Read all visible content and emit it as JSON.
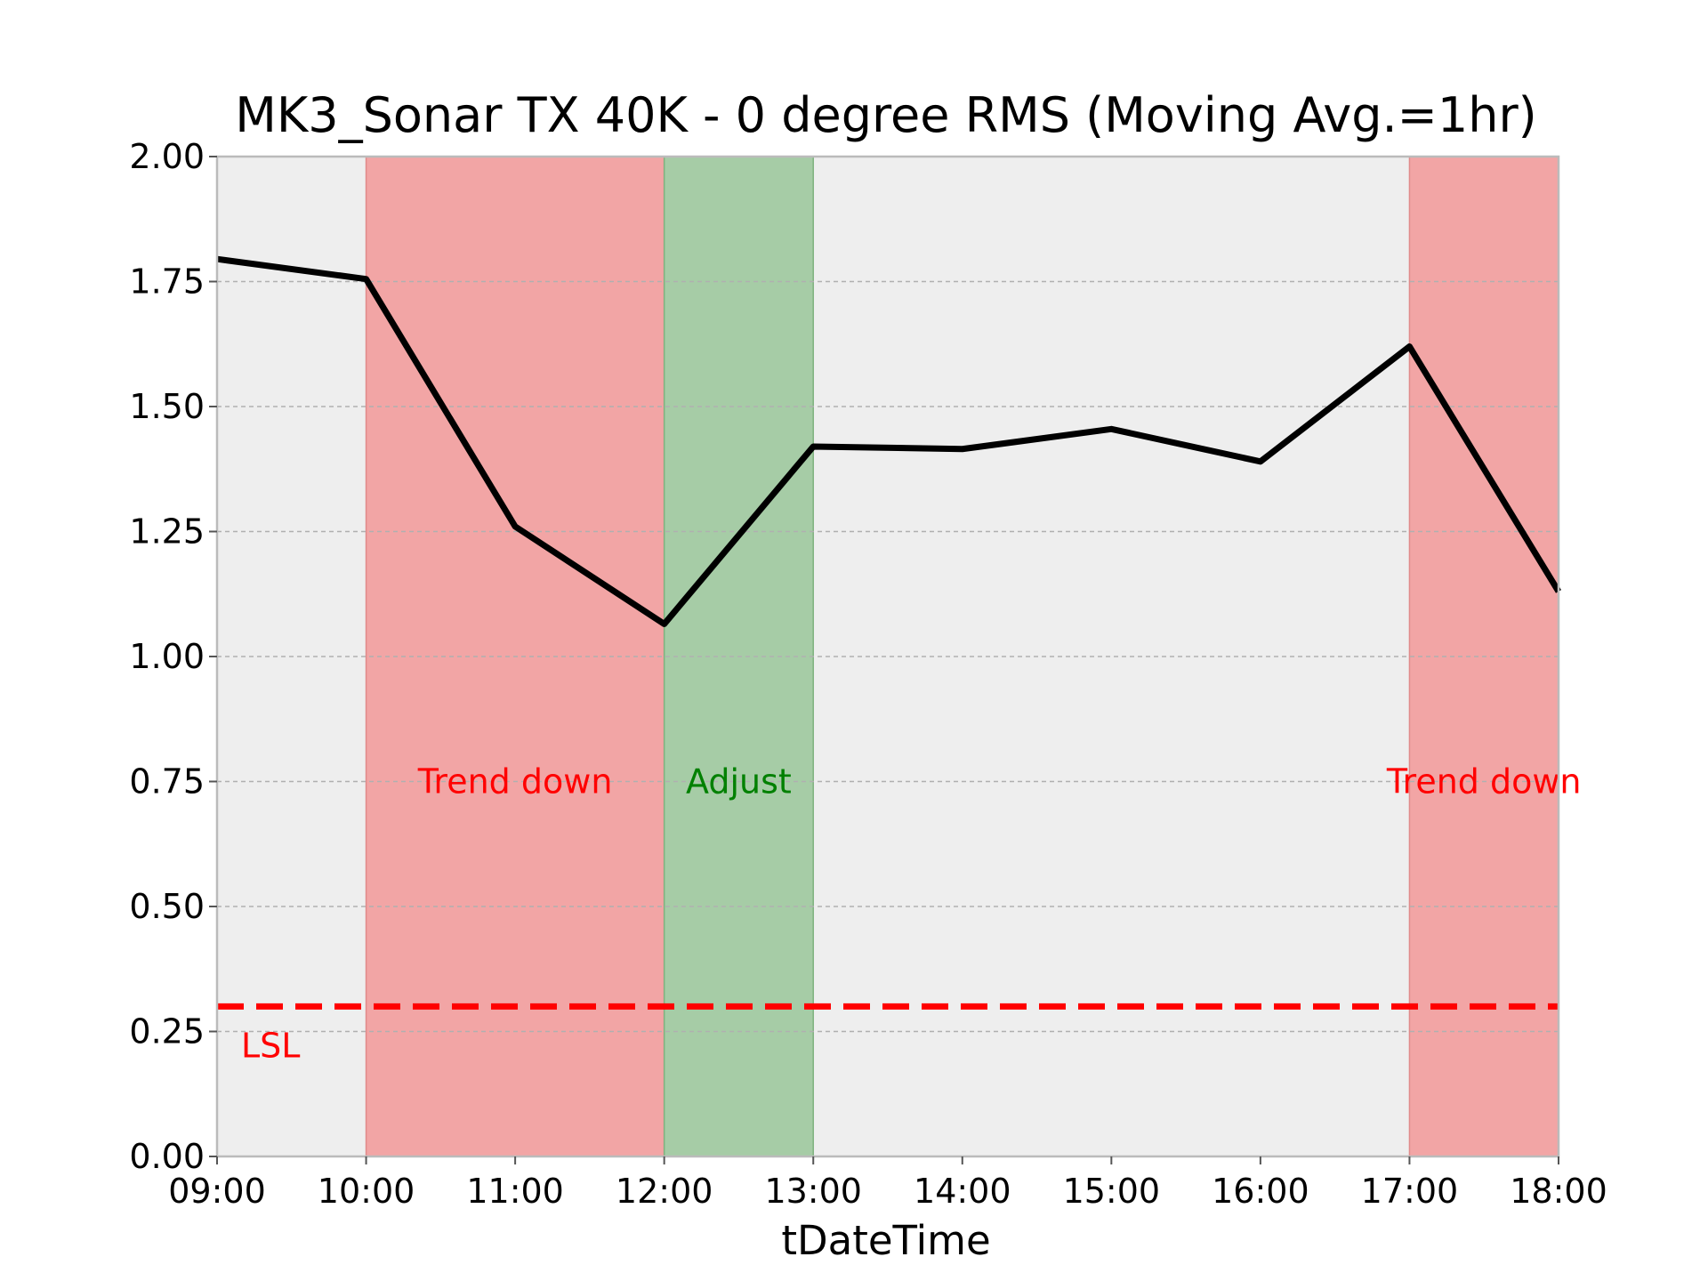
{
  "chart_data": {
    "type": "line",
    "title": "MK3_Sonar TX 40K - 0 degree RMS (Moving Avg.=1hr)",
    "xlabel": "tDateTime",
    "ylabel": "",
    "x": [
      "09:00",
      "10:00",
      "11:00",
      "12:00",
      "13:00",
      "14:00",
      "15:00",
      "16:00",
      "17:00",
      "18:00"
    ],
    "series": [
      {
        "values": [
          1.795,
          1.755,
          1.26,
          1.065,
          1.42,
          1.415,
          1.455,
          1.39,
          1.62,
          1.13
        ],
        "color": "#000000"
      }
    ],
    "xlim": [
      "09:00",
      "18:00"
    ],
    "ylim": [
      0,
      2.0
    ],
    "yticks": [
      "0.00",
      "0.25",
      "0.50",
      "0.75",
      "1.00",
      "1.25",
      "1.50",
      "1.75",
      "2.00"
    ],
    "grid": "y-dashed",
    "lsl": {
      "label": "LSL",
      "value": 0.3,
      "color": "#ff0000"
    },
    "regions": [
      {
        "label": "Trend down",
        "start": "10:00",
        "end": "12:00",
        "color": "#f2a5a5",
        "label_color": "#ff0000"
      },
      {
        "label": "Adjust",
        "start": "12:00",
        "end": "13:00",
        "color": "#a6cca6",
        "label_color": "#008000"
      },
      {
        "label": "Trend down",
        "start": "17:00",
        "end": "18:00",
        "color": "#f2a5a5",
        "label_color": "#ff0000"
      }
    ],
    "background": "#eeeeee"
  }
}
